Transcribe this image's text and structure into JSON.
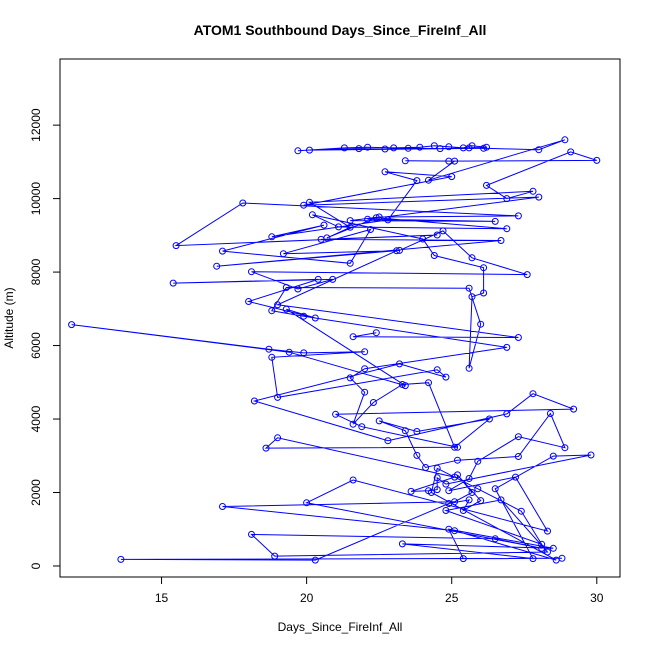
{
  "chart_data": {
    "type": "line",
    "title": "ATOM1 Southbound Days_Since_FireInf_All",
    "xlabel": "Days_Since_FireInf_All",
    "ylabel": "Altitude (m)",
    "xlim": [
      11.5,
      30.8
    ],
    "ylim": [
      -300,
      13800
    ],
    "xticks": [
      15,
      20,
      25,
      30
    ],
    "yticks": [
      0,
      2000,
      4000,
      6000,
      8000,
      10000,
      12000
    ],
    "grid": false,
    "line_color": "#0000ff",
    "marker": "open-circle",
    "series": [
      {
        "name": "",
        "points": [
          [
            19.7,
            11300
          ],
          [
            21.3,
            11380
          ],
          [
            22.1,
            11400
          ],
          [
            23.0,
            11380
          ],
          [
            23.9,
            11400
          ],
          [
            24.4,
            11440
          ],
          [
            24.9,
            11410
          ],
          [
            25.4,
            11380
          ],
          [
            25.7,
            11440
          ],
          [
            26.2,
            11400
          ],
          [
            25.6,
            11380
          ],
          [
            24.6,
            11360
          ],
          [
            23.5,
            11370
          ],
          [
            22.7,
            11350
          ],
          [
            21.8,
            11360
          ],
          [
            20.1,
            11320
          ],
          [
            26.1,
            11370
          ],
          [
            28.0,
            11330
          ],
          [
            28.9,
            11600
          ],
          [
            24.2,
            10500
          ],
          [
            25.1,
            11020
          ],
          [
            23.4,
            11030
          ],
          [
            24.9,
            11020
          ],
          [
            30.0,
            11040
          ],
          [
            29.1,
            11270
          ],
          [
            26.2,
            10360
          ],
          [
            26.9,
            10000
          ],
          [
            27.8,
            10200
          ],
          [
            20.1,
            9900
          ],
          [
            21.5,
            9220
          ],
          [
            20.7,
            8930
          ],
          [
            22.4,
            9480
          ],
          [
            26.9,
            9180
          ],
          [
            21.1,
            9230
          ],
          [
            20.2,
            9560
          ],
          [
            24.0,
            8900
          ],
          [
            24.4,
            8450
          ],
          [
            26.1,
            8120
          ],
          [
            26.1,
            7430
          ],
          [
            25.7,
            7330
          ],
          [
            25.6,
            5380
          ],
          [
            26.0,
            6580
          ],
          [
            25.6,
            7560
          ],
          [
            19.3,
            7580
          ],
          [
            18.8,
            6950
          ],
          [
            19.9,
            6800
          ],
          [
            26.9,
            5950
          ],
          [
            22.0,
            5370
          ],
          [
            21.5,
            5120
          ],
          [
            22.0,
            4730
          ],
          [
            21.6,
            3860
          ],
          [
            22.3,
            4450
          ],
          [
            23.3,
            4940
          ],
          [
            24.2,
            4990
          ],
          [
            25.1,
            3230
          ],
          [
            26.3,
            4000
          ],
          [
            23.8,
            3660
          ],
          [
            22.5,
            3950
          ],
          [
            23.4,
            3680
          ],
          [
            23.8,
            3010
          ],
          [
            24.1,
            2680
          ],
          [
            25.2,
            2880
          ],
          [
            27.3,
            2980
          ],
          [
            28.4,
            4150
          ],
          [
            28.9,
            3220
          ],
          [
            27.3,
            3520
          ],
          [
            25.9,
            2850
          ],
          [
            25.6,
            2380
          ],
          [
            24.9,
            2050
          ],
          [
            27.2,
            2420
          ],
          [
            28.3,
            950
          ],
          [
            21.6,
            2340
          ],
          [
            20.0,
            1720
          ],
          [
            28.1,
            480
          ],
          [
            26.5,
            740
          ],
          [
            18.1,
            860
          ],
          [
            18.9,
            270
          ],
          [
            28.3,
            380
          ],
          [
            26.7,
            1800
          ],
          [
            24.8,
            1510
          ],
          [
            28.1,
            590
          ],
          [
            27.4,
            1490
          ],
          [
            25.9,
            2100
          ],
          [
            24.5,
            2660
          ],
          [
            24.3,
            2000
          ],
          [
            28.6,
            160
          ],
          [
            25.1,
            960
          ],
          [
            17.1,
            1620
          ],
          [
            25.1,
            1750
          ],
          [
            25.7,
            2000
          ],
          [
            25.2,
            2480
          ],
          [
            26.0,
            1780
          ],
          [
            25.4,
            1510
          ],
          [
            25.6,
            1800
          ],
          [
            24.9,
            1700
          ],
          [
            20.3,
            160
          ],
          [
            13.6,
            180
          ],
          [
            28.8,
            210
          ],
          [
            25.4,
            200
          ],
          [
            24.9,
            1000
          ],
          [
            28.5,
            480
          ],
          [
            23.3,
            600
          ],
          [
            27.8,
            200
          ],
          [
            26.5,
            2100
          ],
          [
            28.5,
            2990
          ],
          [
            29.8,
            3020
          ],
          [
            24.8,
            2230
          ],
          [
            24.5,
            2400
          ],
          [
            24.5,
            2080
          ],
          [
            24.2,
            2050
          ],
          [
            23.6,
            2030
          ],
          [
            25.1,
            2420
          ],
          [
            19.0,
            3490
          ],
          [
            18.6,
            3210
          ],
          [
            25.2,
            3230
          ],
          [
            21.9,
            3790
          ],
          [
            21.0,
            4130
          ],
          [
            29.2,
            4270
          ],
          [
            27.8,
            4690
          ],
          [
            26.9,
            4140
          ],
          [
            22.8,
            3410
          ],
          [
            18.2,
            4490
          ],
          [
            23.2,
            5500
          ],
          [
            24.8,
            5140
          ],
          [
            24.5,
            5340
          ],
          [
            19.0,
            4590
          ],
          [
            18.8,
            5680
          ],
          [
            22.0,
            5830
          ],
          [
            19.9,
            5800
          ],
          [
            18.7,
            5900
          ],
          [
            11.9,
            6570
          ],
          [
            19.4,
            5820
          ],
          [
            23.4,
            4910
          ],
          [
            19.3,
            6990
          ],
          [
            20.3,
            6750
          ],
          [
            18.0,
            7200
          ],
          [
            20.4,
            7800
          ],
          [
            15.4,
            7700
          ],
          [
            20.9,
            7800
          ],
          [
            19.7,
            7540
          ],
          [
            18.1,
            8010
          ],
          [
            27.6,
            7930
          ],
          [
            25.7,
            8390
          ],
          [
            24.7,
            9120
          ],
          [
            23.2,
            8590
          ],
          [
            16.9,
            8160
          ],
          [
            26.7,
            8860
          ],
          [
            20.5,
            8890
          ],
          [
            24.5,
            9010
          ],
          [
            15.5,
            8720
          ],
          [
            17.8,
            9880
          ],
          [
            27.3,
            9530
          ],
          [
            22.5,
            9500
          ],
          [
            21.5,
            9400
          ],
          [
            26.5,
            9380
          ],
          [
            22.1,
            9440
          ],
          [
            28.0,
            10040
          ],
          [
            19.9,
            9820
          ],
          [
            25.0,
            10600
          ],
          [
            22.7,
            10730
          ],
          [
            23.8,
            10490
          ],
          [
            22.8,
            9420
          ],
          [
            18.8,
            8960
          ],
          [
            20.6,
            9280
          ],
          [
            17.1,
            8570
          ],
          [
            21.5,
            8240
          ],
          [
            22.2,
            9160
          ],
          [
            19.2,
            8500
          ],
          [
            23.1,
            8580
          ],
          [
            19.0,
            7110
          ],
          [
            27.3,
            6220
          ],
          [
            21.6,
            6240
          ],
          [
            22.4,
            6350
          ]
        ]
      }
    ]
  }
}
